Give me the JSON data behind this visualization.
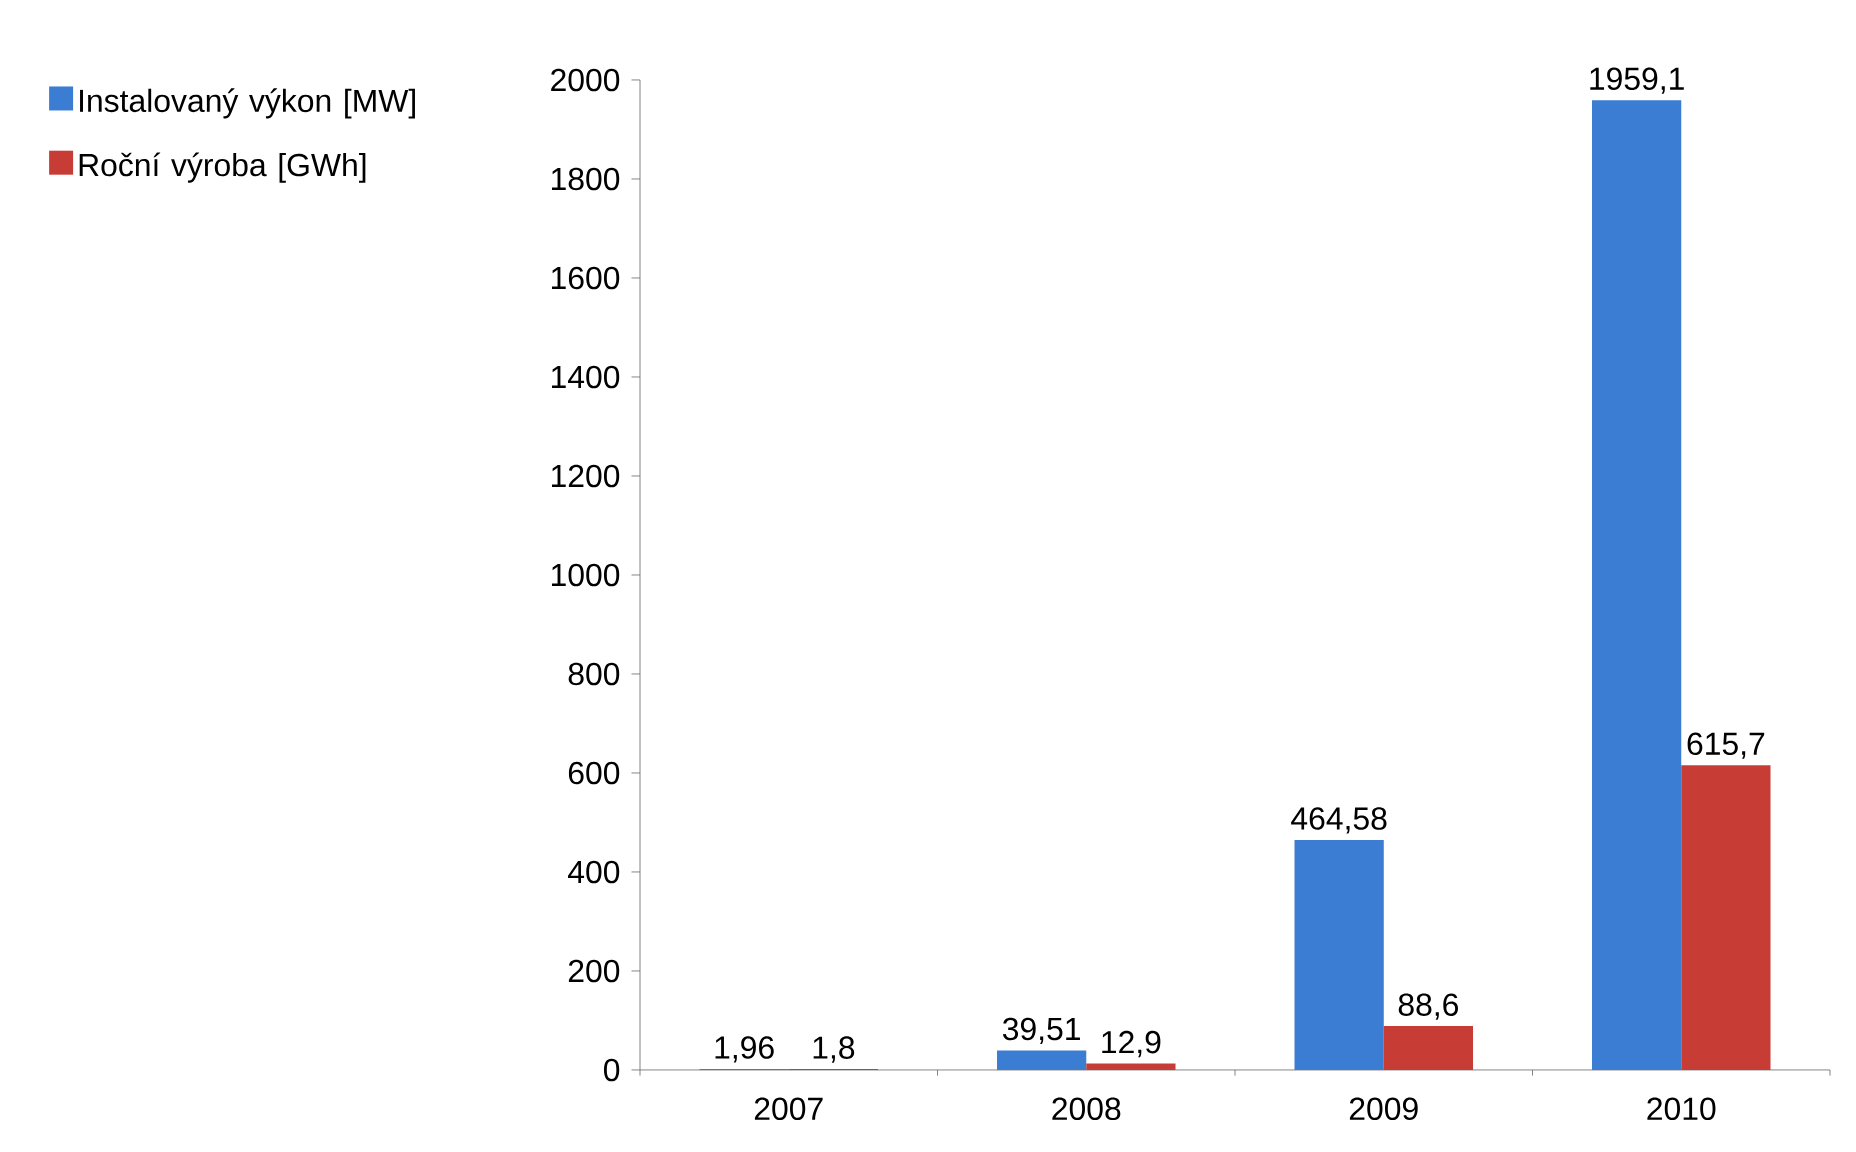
{
  "chart_data": {
    "type": "bar",
    "categories": [
      "2007",
      "2008",
      "2009",
      "2010"
    ],
    "series": [
      {
        "name": "Instalovaný výkon [MW]",
        "color": "#3b7dd3",
        "values": [
          1.96,
          39.51,
          464.58,
          1959.1
        ],
        "value_labels": [
          "1,96",
          "39,51",
          "464,58",
          "1959,1"
        ]
      },
      {
        "name": "Roční výroba [GWh]",
        "color": "#c83c36",
        "values": [
          1.8,
          12.9,
          88.6,
          615.7
        ],
        "value_labels": [
          "1,8",
          "12,9",
          "88,6",
          "615,7"
        ]
      }
    ],
    "ylim": [
      0,
      2000
    ],
    "yticks": [
      0,
      200,
      400,
      600,
      800,
      1000,
      1200,
      1400,
      1600,
      1800,
      2000
    ],
    "grid": false,
    "legend": "left"
  }
}
